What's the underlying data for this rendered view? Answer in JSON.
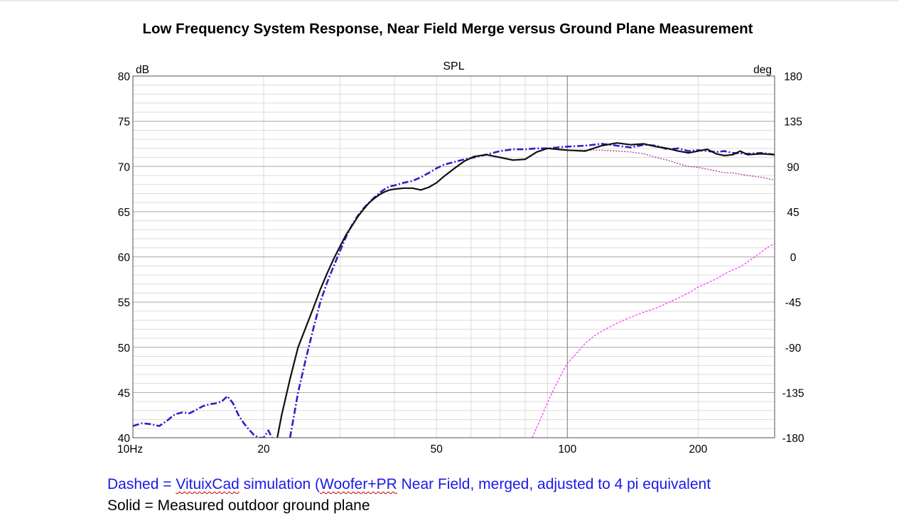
{
  "chart_data": {
    "type": "line",
    "title": "Low Frequency System Response, Near Field Merge versus Ground Plane Measurement",
    "subtitle": "SPL",
    "x_scale": "log",
    "xlim": [
      10,
      300
    ],
    "x_tick_labels": [
      "10Hz",
      "20",
      "50",
      "100",
      "200"
    ],
    "x_tick_values": [
      10,
      20,
      50,
      100,
      200
    ],
    "y_left_unit": "dB",
    "ylim_left": [
      40,
      80
    ],
    "y_left_ticks": [
      "40",
      "45",
      "50",
      "55",
      "60",
      "65",
      "70",
      "75",
      "80"
    ],
    "y_right_unit": "deg",
    "ylim_right": [
      -180,
      180
    ],
    "y_right_ticks": [
      "-180",
      "-135",
      "-90",
      "-45",
      "0",
      "45",
      "90",
      "135",
      "180"
    ],
    "grid": true,
    "series": [
      {
        "style": "dash-dot",
        "color": "#2d1fc4",
        "axis": "left",
        "segments": [
          [
            [
              10,
              41.3
            ],
            [
              10.5,
              41.6
            ],
            [
              11,
              41.5
            ],
            [
              11.5,
              41.3
            ],
            [
              12,
              41.9
            ],
            [
              12.5,
              42.6
            ],
            [
              13,
              42.8
            ],
            [
              13.5,
              42.7
            ],
            [
              14,
              43.1
            ],
            [
              14.5,
              43.5
            ],
            [
              15,
              43.7
            ],
            [
              15.5,
              43.8
            ],
            [
              16,
              44.0
            ],
            [
              16.5,
              44.6
            ],
            [
              17,
              43.8
            ],
            [
              17.5,
              42.5
            ],
            [
              18,
              41.6
            ],
            [
              18.5,
              40.9
            ],
            [
              19,
              40.3
            ],
            [
              19.5,
              40.0
            ],
            [
              20,
              40.0
            ],
            [
              20.5,
              40.8
            ],
            [
              20.9,
              40.0
            ]
          ],
          [
            [
              23,
              40.0
            ],
            [
              23.5,
              42.5
            ],
            [
              24,
              45.0
            ],
            [
              25,
              48.7
            ],
            [
              26,
              52.0
            ],
            [
              27,
              55.0
            ],
            [
              28,
              57.2
            ],
            [
              29,
              59.0
            ],
            [
              30,
              60.7
            ],
            [
              31,
              62.3
            ],
            [
              32,
              63.6
            ],
            [
              33,
              64.6
            ],
            [
              34,
              65.4
            ],
            [
              35,
              66.0
            ],
            [
              36,
              66.6
            ],
            [
              37,
              67.1
            ],
            [
              38,
              67.5
            ],
            [
              39,
              67.8
            ],
            [
              40,
              67.9
            ],
            [
              42,
              68.2
            ],
            [
              44,
              68.4
            ],
            [
              46,
              68.8
            ],
            [
              48,
              69.3
            ],
            [
              50,
              69.8
            ],
            [
              52,
              70.2
            ],
            [
              55,
              70.5
            ],
            [
              58,
              70.8
            ],
            [
              61,
              71.0
            ],
            [
              65,
              71.3
            ],
            [
              70,
              71.7
            ],
            [
              75,
              71.9
            ],
            [
              80,
              71.9
            ],
            [
              85,
              72.0
            ],
            [
              90,
              72.0
            ],
            [
              95,
              72.1
            ],
            [
              100,
              72.2
            ],
            [
              110,
              72.3
            ],
            [
              120,
              72.5
            ],
            [
              130,
              72.3
            ],
            [
              140,
              72.1
            ],
            [
              150,
              72.4
            ],
            [
              160,
              72.3
            ],
            [
              170,
              71.9
            ],
            [
              180,
              72.0
            ],
            [
              190,
              71.7
            ],
            [
              200,
              71.8
            ],
            [
              210,
              71.7
            ],
            [
              220,
              71.6
            ],
            [
              230,
              71.7
            ],
            [
              240,
              71.5
            ],
            [
              260,
              71.4
            ],
            [
              280,
              71.5
            ],
            [
              300,
              71.3
            ]
          ]
        ]
      },
      {
        "style": "solid",
        "color": "#111111",
        "axis": "left",
        "segments": [
          [
            [
              21.5,
              40.0
            ],
            [
              22,
              42.5
            ],
            [
              23,
              46.5
            ],
            [
              24,
              50.0
            ],
            [
              25,
              52.2
            ],
            [
              26,
              54.3
            ],
            [
              27,
              56.4
            ],
            [
              28,
              58.2
            ],
            [
              29,
              59.8
            ],
            [
              30,
              61.2
            ],
            [
              31,
              62.5
            ],
            [
              32,
              63.5
            ],
            [
              33,
              64.5
            ],
            [
              34,
              65.3
            ],
            [
              35,
              66.0
            ],
            [
              36,
              66.5
            ],
            [
              37,
              66.9
            ],
            [
              38,
              67.2
            ],
            [
              39,
              67.4
            ],
            [
              40,
              67.5
            ],
            [
              42,
              67.6
            ],
            [
              44,
              67.6
            ],
            [
              46,
              67.4
            ],
            [
              48,
              67.7
            ],
            [
              50,
              68.2
            ],
            [
              52,
              68.9
            ],
            [
              55,
              69.8
            ],
            [
              58,
              70.6
            ],
            [
              61,
              71.1
            ],
            [
              65,
              71.3
            ],
            [
              70,
              71.0
            ],
            [
              75,
              70.7
            ],
            [
              80,
              70.8
            ],
            [
              85,
              71.6
            ],
            [
              90,
              72.0
            ],
            [
              95,
              71.9
            ],
            [
              100,
              71.8
            ],
            [
              110,
              71.7
            ],
            [
              120,
              72.3
            ],
            [
              130,
              72.6
            ],
            [
              140,
              72.4
            ],
            [
              150,
              72.5
            ],
            [
              160,
              72.2
            ],
            [
              170,
              72.0
            ],
            [
              180,
              71.7
            ],
            [
              190,
              71.5
            ],
            [
              200,
              71.7
            ],
            [
              210,
              71.9
            ],
            [
              220,
              71.4
            ],
            [
              230,
              71.2
            ],
            [
              240,
              71.3
            ],
            [
              250,
              71.7
            ],
            [
              260,
              71.3
            ],
            [
              280,
              71.4
            ],
            [
              300,
              71.3
            ]
          ]
        ]
      },
      {
        "style": "dotted",
        "color": "#a0208a",
        "axis": "left",
        "segments": [
          [
            [
              100,
              71.8
            ],
            [
              110,
              71.8
            ],
            [
              120,
              71.8
            ],
            [
              130,
              71.7
            ],
            [
              140,
              71.6
            ],
            [
              150,
              71.4
            ],
            [
              160,
              71.0
            ],
            [
              170,
              70.7
            ],
            [
              180,
              70.3
            ],
            [
              190,
              70.0
            ],
            [
              200,
              69.9
            ],
            [
              210,
              69.7
            ],
            [
              220,
              69.5
            ],
            [
              230,
              69.3
            ],
            [
              240,
              69.3
            ],
            [
              260,
              69.0
            ],
            [
              280,
              68.8
            ],
            [
              300,
              68.5
            ]
          ]
        ]
      },
      {
        "style": "dashed-fine",
        "color": "#ff2eff",
        "axis": "right",
        "segments": [
          [
            [
              83,
              -180
            ],
            [
              85,
              -170
            ],
            [
              88,
              -155
            ],
            [
              92,
              -136
            ],
            [
              96,
              -120
            ],
            [
              100,
              -106
            ],
            [
              105,
              -96
            ],
            [
              110,
              -86
            ],
            [
              115,
              -79
            ],
            [
              120,
              -74
            ],
            [
              130,
              -66
            ],
            [
              140,
              -60
            ],
            [
              150,
              -55
            ],
            [
              160,
              -51
            ],
            [
              170,
              -46
            ],
            [
              180,
              -41
            ],
            [
              190,
              -36
            ],
            [
              200,
              -30
            ],
            [
              210,
              -26
            ],
            [
              220,
              -22
            ],
            [
              230,
              -17
            ],
            [
              240,
              -13
            ],
            [
              250,
              -10
            ],
            [
              260,
              -5
            ],
            [
              270,
              0
            ],
            [
              280,
              5
            ],
            [
              290,
              10
            ],
            [
              300,
              13
            ]
          ]
        ]
      }
    ]
  },
  "captions": {
    "dashed": {
      "parts": [
        {
          "text": "Dashed = ",
          "squiggle": false
        },
        {
          "text": "VituixCad",
          "squiggle": true
        },
        {
          "text": " simulation (",
          "squiggle": false
        },
        {
          "text": "Woofer+PR",
          "squiggle": true
        },
        {
          "text": " Near Field, merged, adjusted to 4 pi equivalent",
          "squiggle": false
        }
      ],
      "color": "#1a1ae6"
    },
    "solid": "Solid = Measured outdoor ground plane"
  }
}
